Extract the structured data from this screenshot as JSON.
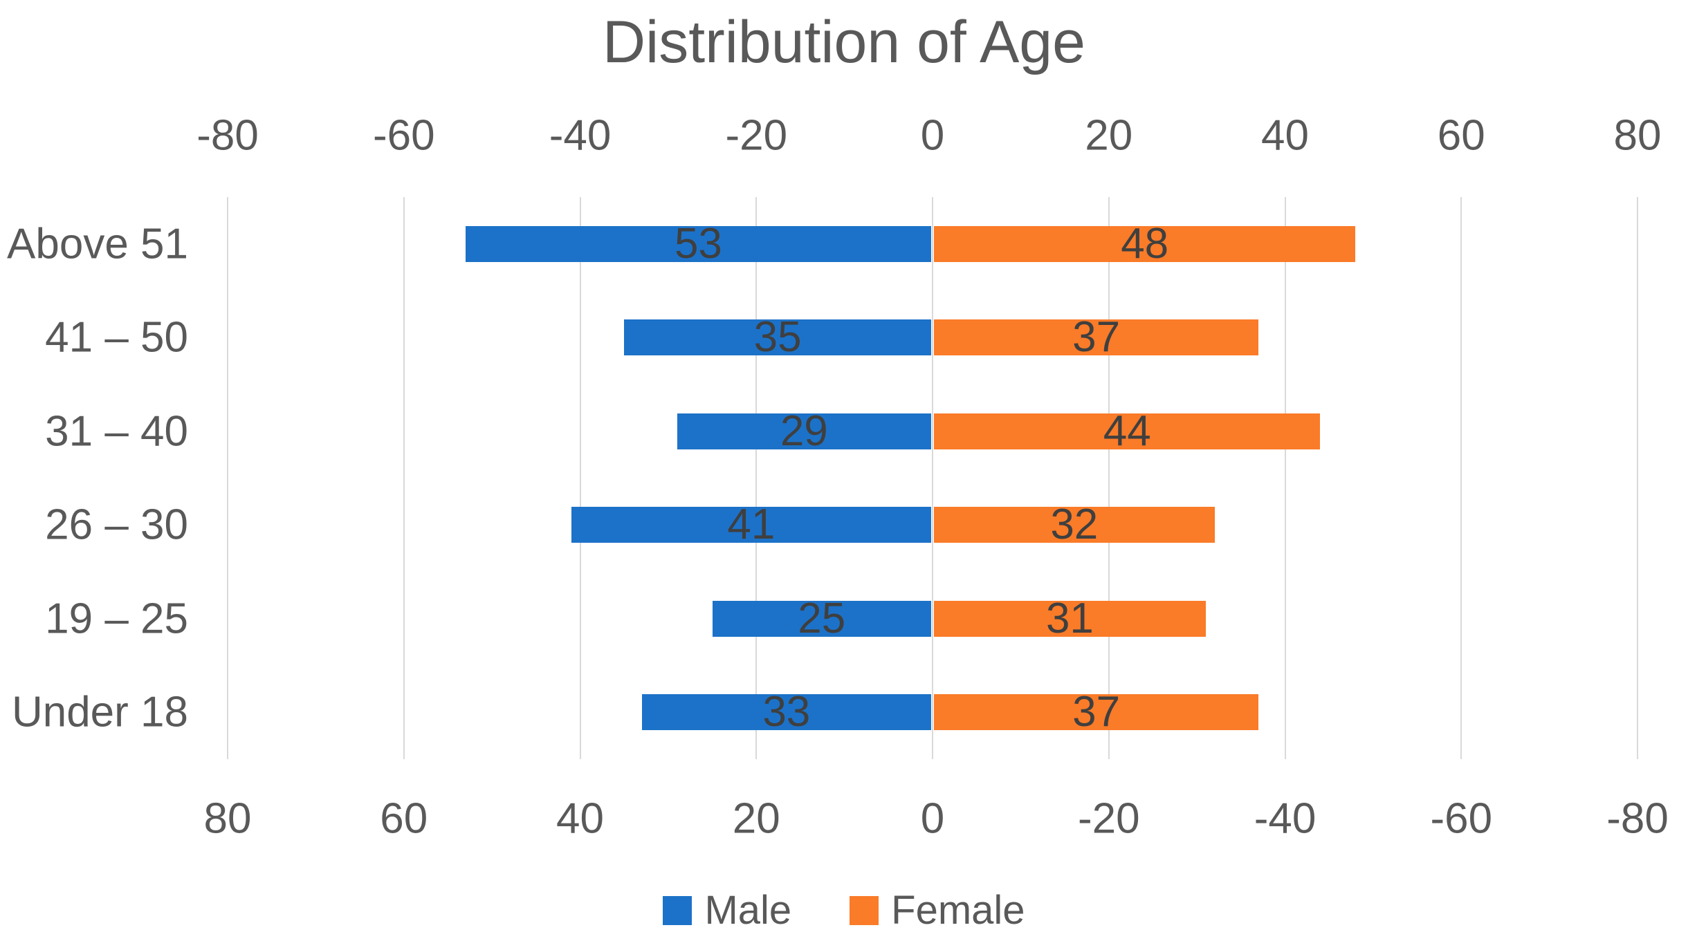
{
  "title": "Distribution of Age",
  "chart_data": {
    "type": "bar",
    "variant": "population-pyramid-tornado",
    "orientation": "horizontal",
    "title": "Distribution of Age",
    "categories": [
      "Above 51",
      "41 – 50",
      "31 – 40",
      "26 – 30",
      "19 – 25",
      "Under 18"
    ],
    "series": [
      {
        "name": "Male",
        "side": "left",
        "color": "#1C72C8",
        "values": [
          53,
          35,
          29,
          41,
          25,
          33
        ]
      },
      {
        "name": "Female",
        "side": "right",
        "color": "#FA7B28",
        "values": [
          48,
          37,
          44,
          32,
          31,
          37
        ]
      }
    ],
    "data_labels_shown": true,
    "top_axis_ticks": [
      "-80",
      "-60",
      "-40",
      "-20",
      "0",
      "20",
      "40",
      "60",
      "80"
    ],
    "bottom_axis_ticks": [
      "80",
      "60",
      "40",
      "20",
      "0",
      "-20",
      "-40",
      "-60",
      "-80"
    ],
    "axis_range": [
      -80,
      80
    ],
    "tick_step": 20,
    "grid": "vertical",
    "legend": {
      "position": "bottom",
      "items": [
        {
          "label": "Male",
          "color": "#1C72C8"
        },
        {
          "label": "Female",
          "color": "#FA7B28"
        }
      ]
    },
    "colors": {
      "gridline": "#D9D9D9",
      "axis_text": "#595959",
      "category_text": "#595959",
      "data_label_text": "#3F3F3F",
      "title_text": "#595959",
      "background": "#FFFFFF"
    }
  }
}
